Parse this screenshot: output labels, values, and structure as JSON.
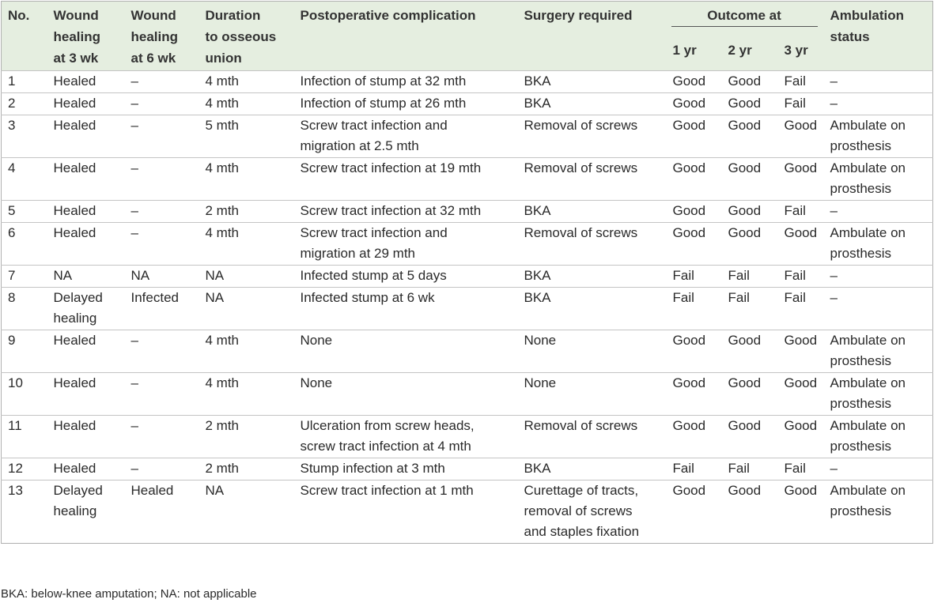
{
  "header": {
    "no": "No.",
    "wound3": [
      "Wound",
      "healing",
      "at 3 wk"
    ],
    "wound6": [
      "Wound",
      "healing",
      "at 6 wk"
    ],
    "duration": [
      "Duration",
      "to osseous",
      "union"
    ],
    "complication": "Postoperative complication",
    "surgery": "Surgery required",
    "outcome": "Outcome at",
    "yr1": "1 yr",
    "yr2": "2 yr",
    "yr3": "3 yr",
    "ambulation": [
      "Ambulation",
      "status"
    ]
  },
  "rows": [
    {
      "no": "1",
      "w3": [
        "Healed"
      ],
      "w6": "–",
      "dur": "4 mth",
      "comp": [
        "Infection of stump at 32 mth"
      ],
      "surg": [
        "BKA"
      ],
      "y1": "Good",
      "y2": "Good",
      "y3": "Fail",
      "amb": [
        "–"
      ]
    },
    {
      "no": "2",
      "w3": [
        "Healed"
      ],
      "w6": "–",
      "dur": "4 mth",
      "comp": [
        "Infection of stump at 26 mth"
      ],
      "surg": [
        "BKA"
      ],
      "y1": "Good",
      "y2": "Good",
      "y3": "Fail",
      "amb": [
        "–"
      ]
    },
    {
      "no": "3",
      "w3": [
        "Healed"
      ],
      "w6": "–",
      "dur": "5 mth",
      "comp": [
        "Screw tract infection and",
        "migration at 2.5 mth"
      ],
      "surg": [
        "Removal of screws"
      ],
      "y1": "Good",
      "y2": "Good",
      "y3": "Good",
      "amb": [
        "Ambulate on",
        "prosthesis"
      ]
    },
    {
      "no": "4",
      "w3": [
        "Healed"
      ],
      "w6": "–",
      "dur": "4 mth",
      "comp": [
        "Screw tract infection at 19 mth"
      ],
      "surg": [
        "Removal of screws"
      ],
      "y1": "Good",
      "y2": "Good",
      "y3": "Good",
      "amb": [
        "Ambulate on",
        "prosthesis"
      ]
    },
    {
      "no": "5",
      "w3": [
        "Healed"
      ],
      "w6": "–",
      "dur": "2 mth",
      "comp": [
        "Screw tract infection at 32 mth"
      ],
      "surg": [
        "BKA"
      ],
      "y1": "Good",
      "y2": "Good",
      "y3": "Fail",
      "amb": [
        "–"
      ]
    },
    {
      "no": "6",
      "w3": [
        "Healed"
      ],
      "w6": "–",
      "dur": "4 mth",
      "comp": [
        "Screw tract infection and",
        "migration at 29 mth"
      ],
      "surg": [
        "Removal of screws"
      ],
      "y1": "Good",
      "y2": "Good",
      "y3": "Good",
      "amb": [
        "Ambulate on",
        "prosthesis"
      ]
    },
    {
      "no": "7",
      "w3": [
        "NA"
      ],
      "w6": "NA",
      "dur": "NA",
      "comp": [
        "Infected stump at 5 days"
      ],
      "surg": [
        "BKA"
      ],
      "y1": "Fail",
      "y2": "Fail",
      "y3": "Fail",
      "amb": [
        "–"
      ]
    },
    {
      "no": "8",
      "w3": [
        "Delayed",
        "healing"
      ],
      "w6": "Infected",
      "dur": "NA",
      "comp": [
        "Infected stump at 6 wk"
      ],
      "surg": [
        "BKA"
      ],
      "y1": "Fail",
      "y2": "Fail",
      "y3": "Fail",
      "amb": [
        "–"
      ]
    },
    {
      "no": "9",
      "w3": [
        "Healed"
      ],
      "w6": "–",
      "dur": "4 mth",
      "comp": [
        "None"
      ],
      "surg": [
        "None"
      ],
      "y1": "Good",
      "y2": "Good",
      "y3": "Good",
      "amb": [
        "Ambulate on",
        "prosthesis"
      ]
    },
    {
      "no": "10",
      "w3": [
        "Healed"
      ],
      "w6": "–",
      "dur": "4 mth",
      "comp": [
        "None"
      ],
      "surg": [
        "None"
      ],
      "y1": "Good",
      "y2": "Good",
      "y3": "Good",
      "amb": [
        "Ambulate on",
        "prosthesis"
      ]
    },
    {
      "no": "11",
      "w3": [
        "Healed"
      ],
      "w6": "–",
      "dur": "2 mth",
      "comp": [
        "Ulceration from screw heads,",
        "screw tract infection at 4 mth"
      ],
      "surg": [
        "Removal of screws"
      ],
      "y1": "Good",
      "y2": "Good",
      "y3": "Good",
      "amb": [
        "Ambulate on",
        "prosthesis"
      ]
    },
    {
      "no": "12",
      "w3": [
        "Healed"
      ],
      "w6": "–",
      "dur": "2 mth",
      "comp": [
        "Stump infection at 3 mth"
      ],
      "surg": [
        "BKA"
      ],
      "y1": "Fail",
      "y2": "Fail",
      "y3": "Fail",
      "amb": [
        "–"
      ]
    },
    {
      "no": "13",
      "w3": [
        "Delayed",
        "healing"
      ],
      "w6": "Healed",
      "dur": "NA",
      "comp": [
        "Screw tract infection at 1 mth"
      ],
      "surg": [
        "Curettage of tracts,",
        "removal of screws",
        "and staples fixation"
      ],
      "y1": "Good",
      "y2": "Good",
      "y3": "Good",
      "amb": [
        "Ambulate on",
        "prosthesis"
      ]
    }
  ],
  "footnote": "BKA: below-knee amputation; NA: not applicable"
}
